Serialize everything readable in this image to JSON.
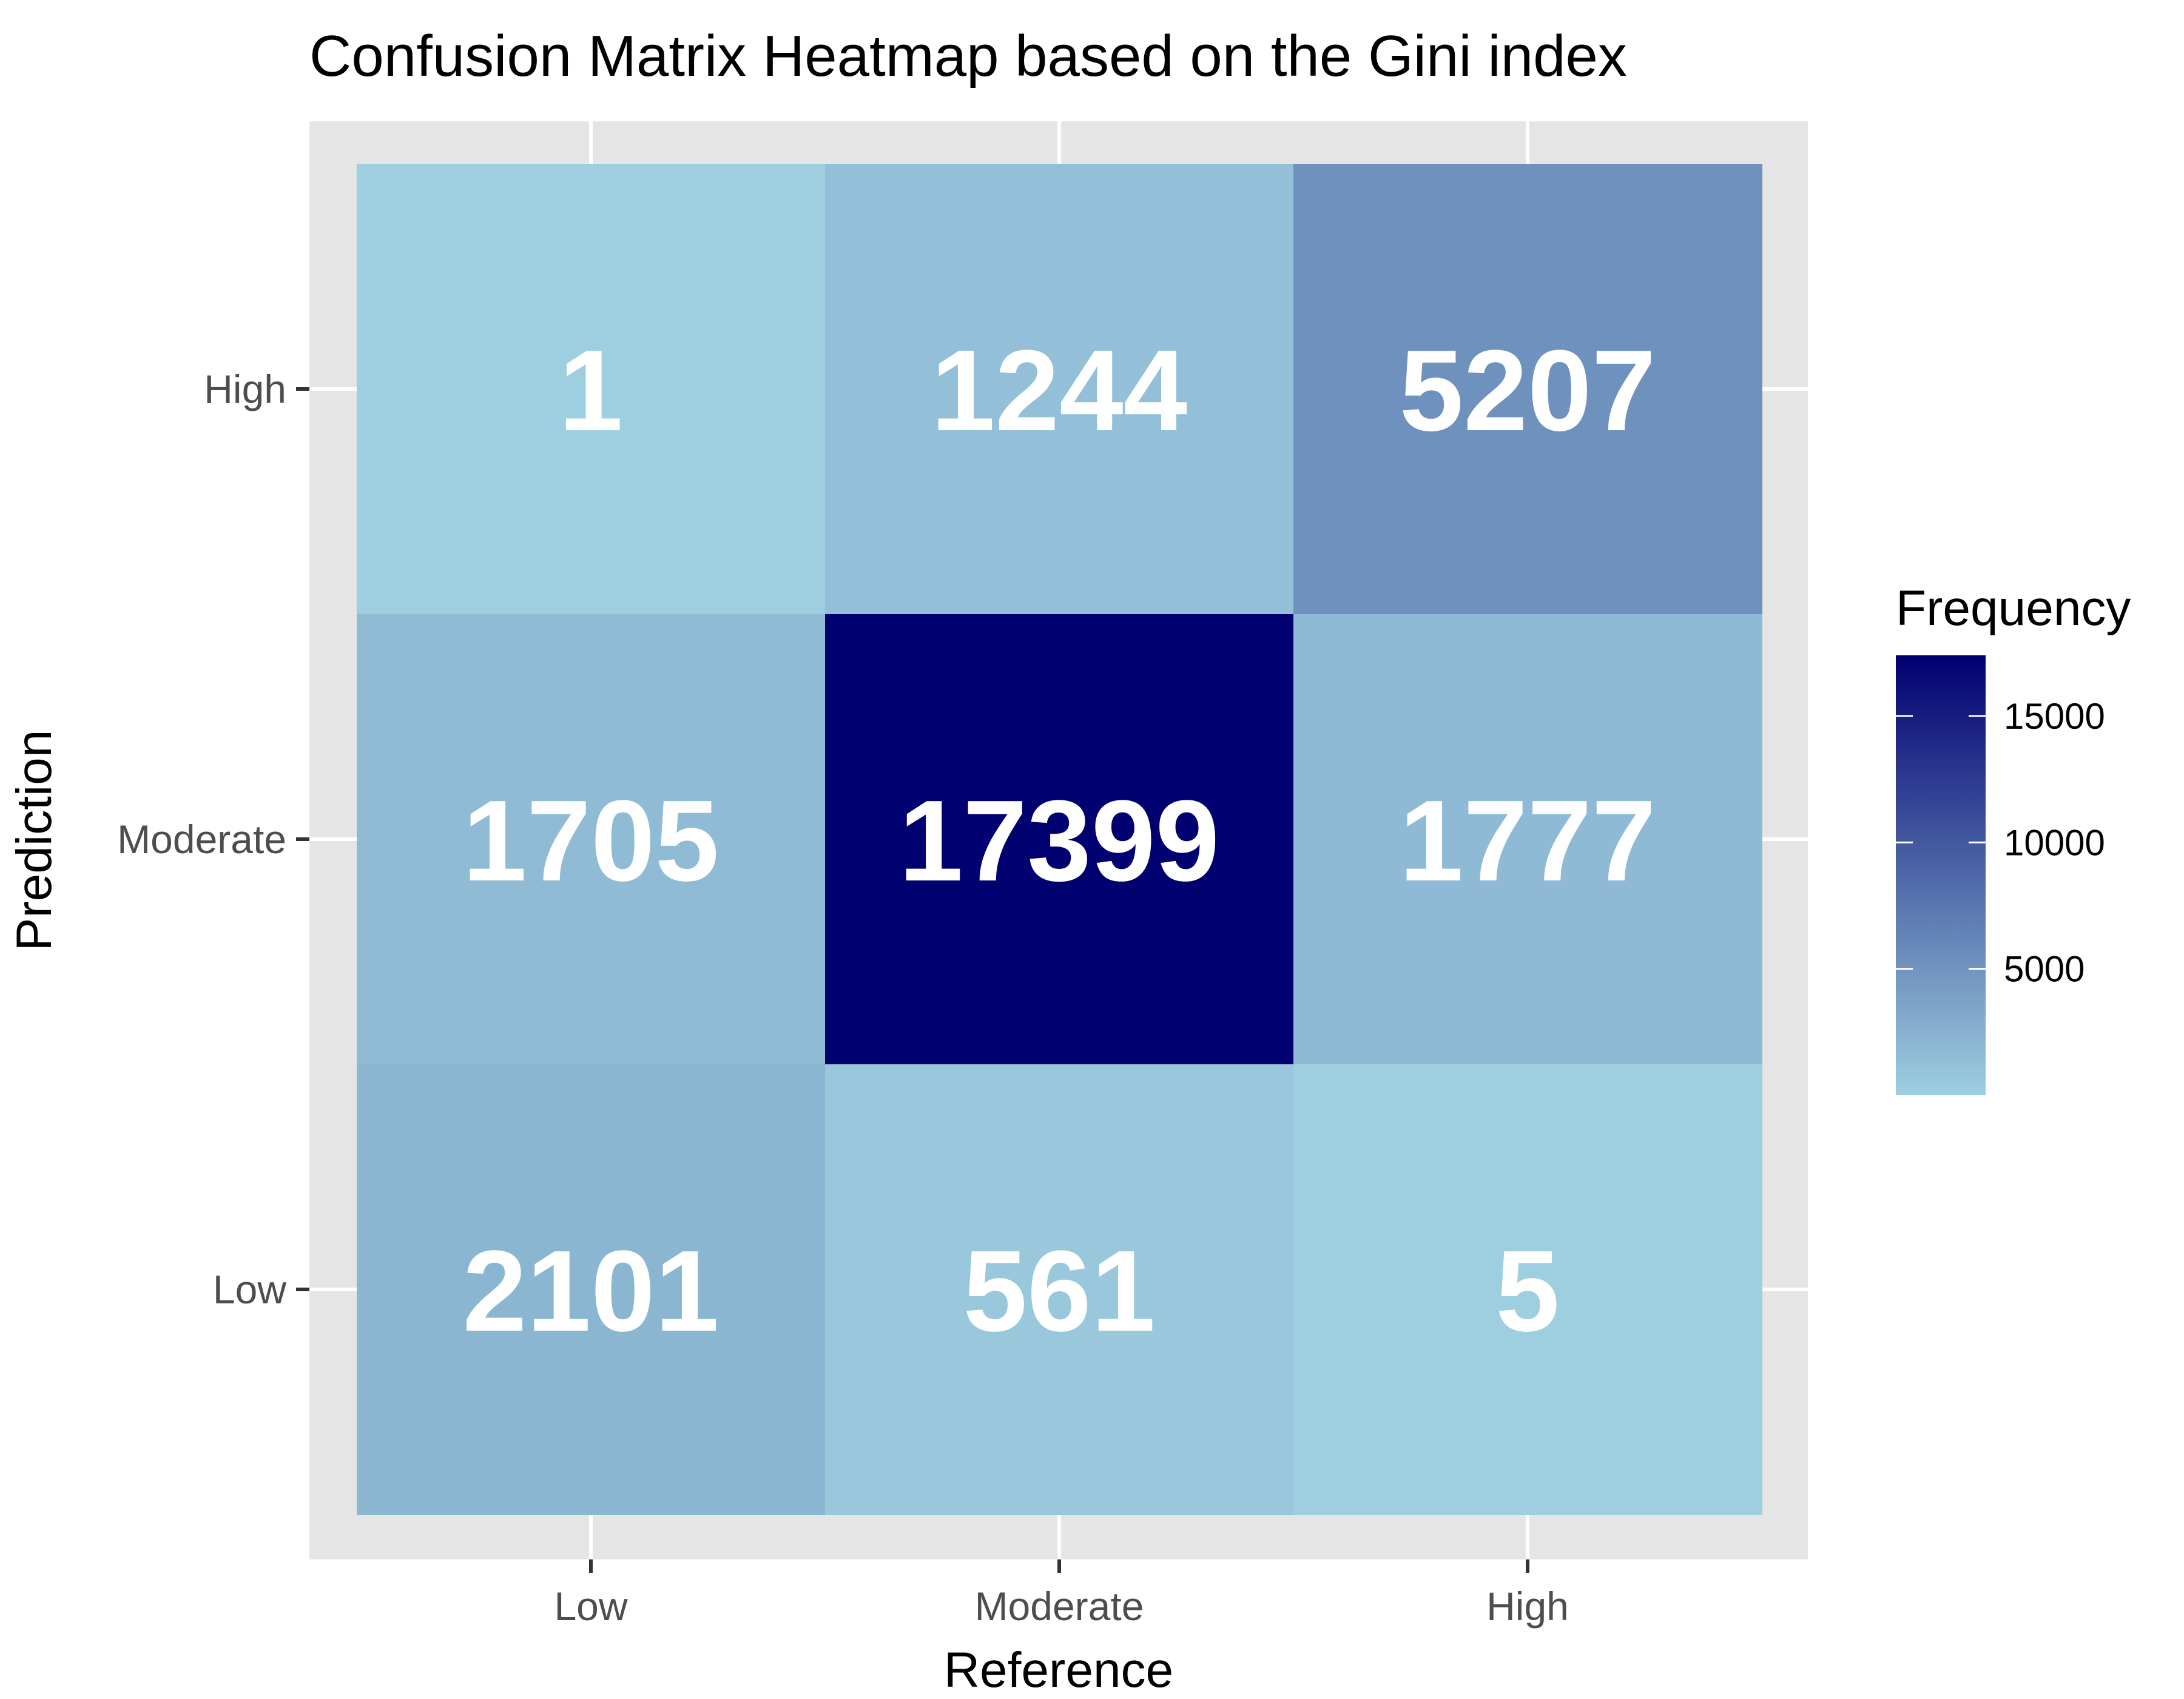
{
  "chart_data": {
    "type": "heatmap",
    "title": "Confusion Matrix Heatmap based on the Gini index",
    "xlabel": "Reference",
    "ylabel": "Prediction",
    "x_categories": [
      "Low",
      "Moderate",
      "High"
    ],
    "y_categories": [
      "Low",
      "Moderate",
      "High"
    ],
    "cells": [
      {
        "reference": "Low",
        "prediction": "High",
        "value": 1
      },
      {
        "reference": "Moderate",
        "prediction": "High",
        "value": 1244
      },
      {
        "reference": "High",
        "prediction": "High",
        "value": 5207
      },
      {
        "reference": "Low",
        "prediction": "Moderate",
        "value": 1705
      },
      {
        "reference": "Moderate",
        "prediction": "Moderate",
        "value": 17399
      },
      {
        "reference": "High",
        "prediction": "Moderate",
        "value": 1777
      },
      {
        "reference": "Low",
        "prediction": "Low",
        "value": 2101
      },
      {
        "reference": "Moderate",
        "prediction": "Low",
        "value": 561
      },
      {
        "reference": "High",
        "prediction": "Low",
        "value": 5
      }
    ],
    "legend": {
      "title": "Frequency",
      "ticks": [
        5000,
        10000,
        15000
      ],
      "range": [
        1,
        17399
      ],
      "low_color": "#9ecfe0",
      "high_color": "#000070"
    },
    "colors": {
      "panel_background": "#e5e5e5",
      "grid": "#ffffff",
      "cell_text": "#ffffff"
    },
    "grid": true
  }
}
